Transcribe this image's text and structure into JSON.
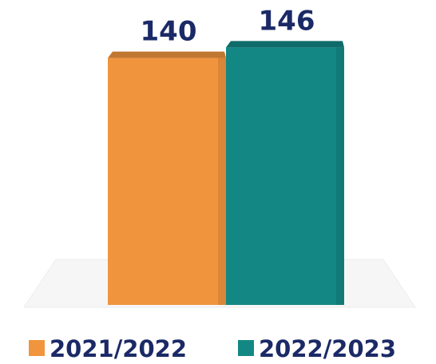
{
  "chart_data": {
    "type": "bar",
    "series": [
      {
        "name": "2021/2022",
        "color": "#f0953e",
        "values": [
          140
        ]
      },
      {
        "name": "2022/2023",
        "color": "#138784",
        "values": [
          146
        ]
      }
    ]
  }
}
